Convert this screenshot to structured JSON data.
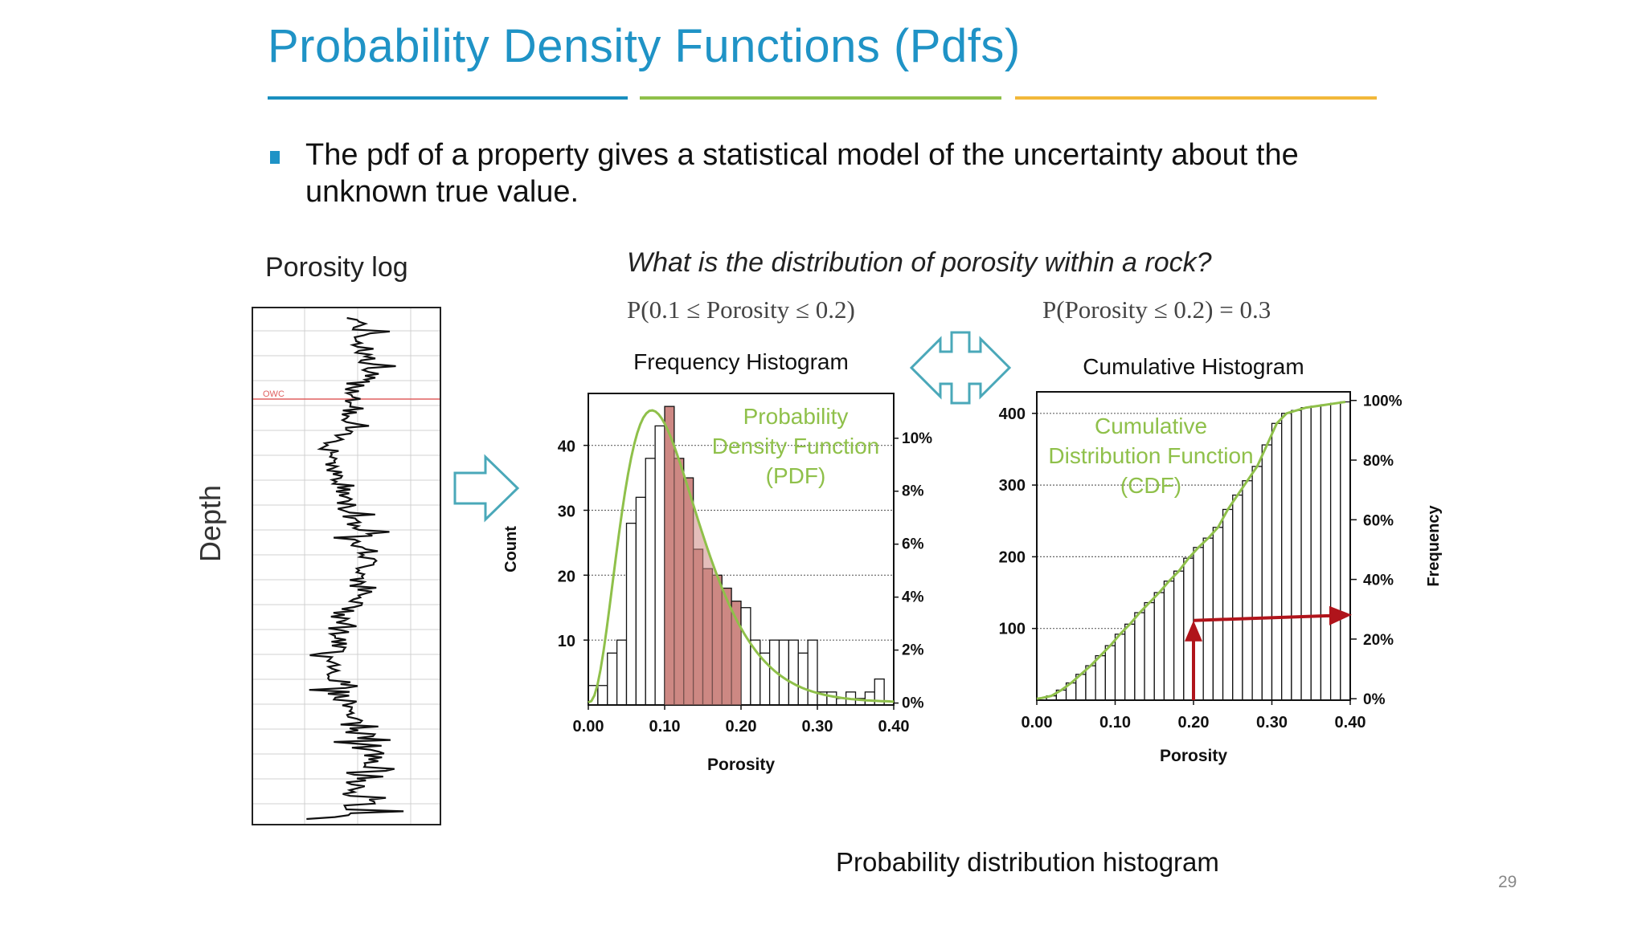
{
  "slide": {
    "title": "Probability Density Functions (Pdfs)",
    "rule_colors": [
      "#1a8fbf",
      "#8fc04a",
      "#f2b83a"
    ],
    "bullet": "The pdf of a property gives a statistical model of the uncertainty about the unknown true value.",
    "caption": "Probability distribution histogram",
    "page_number": "29"
  },
  "log_panel": {
    "title": "Porosity log",
    "depth_label": "Depth",
    "marker_text": "OWC"
  },
  "question": "What is the distribution of porosity within a rock?",
  "formula_left": "P(0.1 ≤ Porosity ≤ 0.2)",
  "formula_right": "P(Porosity ≤ 0.2) = 0.3",
  "chart_data": [
    {
      "type": "bar",
      "title": "Frequency Histogram",
      "xlabel": "Porosity",
      "ylabel": "Count",
      "y2label": "",
      "xlim": [
        0,
        0.4
      ],
      "ylim": [
        0,
        48
      ],
      "xticks": [
        "0.00",
        "0.10",
        "0.20",
        "0.30",
        "0.40"
      ],
      "yticks": [
        10,
        20,
        30,
        40
      ],
      "y2ticks": [
        "0%",
        "2%",
        "4%",
        "6%",
        "8%",
        "10%"
      ],
      "bin_width": 0.0125,
      "bin_starts": [
        0,
        0.0125,
        0.025,
        0.0375,
        0.05,
        0.0625,
        0.075,
        0.0875,
        0.1,
        0.1125,
        0.125,
        0.1375,
        0.15,
        0.1625,
        0.175,
        0.1875,
        0.2,
        0.2125,
        0.225,
        0.2375,
        0.25,
        0.2625,
        0.275,
        0.2875,
        0.3,
        0.3125,
        0.325,
        0.3375,
        0.35,
        0.3625,
        0.375,
        0.3875
      ],
      "values": [
        3,
        3,
        8,
        10,
        28,
        32,
        38,
        43,
        46,
        38,
        35,
        24,
        21,
        20,
        18,
        16,
        15,
        10,
        8,
        10,
        10,
        10,
        8,
        10,
        2,
        2,
        1,
        2,
        1,
        2,
        4,
        0
      ],
      "highlight_range": [
        0.1,
        0.2
      ],
      "curve_label": [
        "Probability",
        "Density Function",
        "(PDF)"
      ],
      "curve_color": "#8fc04a",
      "highlight_color": "#cd8884"
    },
    {
      "type": "bar",
      "title": "Cumulative Histogram",
      "xlabel": "Porosity",
      "ylabel": "Frequency",
      "xlim": [
        0,
        0.4
      ],
      "ylim": [
        0,
        430
      ],
      "xticks": [
        "0.00",
        "0.10",
        "0.20",
        "0.30",
        "0.40"
      ],
      "yticks": [
        100,
        200,
        300,
        400
      ],
      "y2ticks": [
        "0%",
        "20%",
        "40%",
        "60%",
        "80%",
        "100%"
      ],
      "bin_width": 0.0125,
      "values": [
        3,
        6,
        14,
        24,
        36,
        48,
        62,
        76,
        92,
        106,
        122,
        136,
        150,
        166,
        180,
        198,
        213,
        226,
        241,
        266,
        286,
        306,
        326,
        356,
        386,
        400,
        404,
        408,
        410,
        412,
        414,
        416
      ],
      "arrow_x": 0.2,
      "arrow_y": 100,
      "curve_label": [
        "Cumulative",
        "Distribution Function",
        "(CDF)"
      ],
      "curve_color": "#8fc04a",
      "arrow_color": "#b0141b"
    }
  ]
}
